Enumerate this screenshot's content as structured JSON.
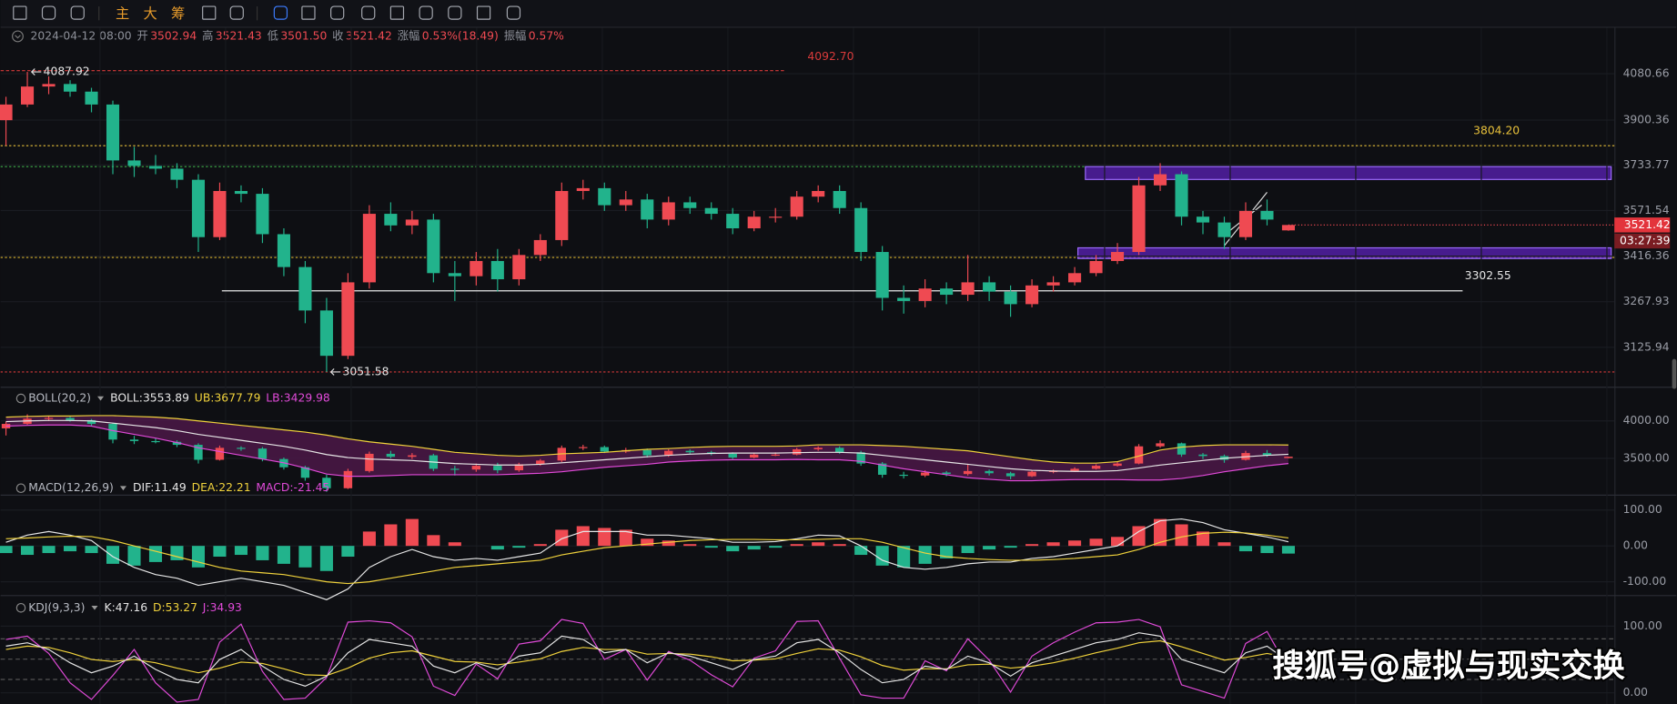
{
  "toolbar": {
    "buttons": [
      "主",
      "大",
      "筹"
    ]
  },
  "info": {
    "time": "2024-04-12 08:00",
    "fields": [
      {
        "label": "开",
        "value": "3502.94"
      },
      {
        "label": "高",
        "value": "3521.43"
      },
      {
        "label": "低",
        "value": "3501.50"
      },
      {
        "label": "收",
        "value": "3521.42"
      },
      {
        "label": "涨幅",
        "value": "0.53%(18.49)"
      },
      {
        "label": "振幅",
        "value": "0.57%"
      }
    ]
  },
  "chart_data": [
    {
      "type": "candlestick",
      "log_scale": true,
      "grid": true,
      "up_color": "#ef4a52",
      "down_color": "#22b38c",
      "ylim": [
        3008,
        4263
      ],
      "yticks": [
        4080.66,
        3900.36,
        3733.77,
        3571.54,
        3416.36,
        3267.93,
        3125.94
      ],
      "candles": [
        [
          3900,
          3990,
          3805,
          3960
        ],
        [
          3960,
          4087.92,
          3950,
          4030
        ],
        [
          4030,
          4070,
          4000,
          4040
        ],
        [
          4040,
          4055,
          3990,
          4010
        ],
        [
          4010,
          4025,
          3930,
          3960
        ],
        [
          3960,
          3975,
          3700,
          3750
        ],
        [
          3750,
          3800,
          3690,
          3730
        ],
        [
          3730,
          3770,
          3700,
          3720
        ],
        [
          3720,
          3740,
          3650,
          3680
        ],
        [
          3680,
          3700,
          3430,
          3480
        ],
        [
          3480,
          3670,
          3470,
          3640
        ],
        [
          3640,
          3660,
          3600,
          3630
        ],
        [
          3630,
          3650,
          3460,
          3490
        ],
        [
          3490,
          3510,
          3350,
          3380
        ],
        [
          3380,
          3400,
          3200,
          3240
        ],
        [
          3240,
          3280,
          3051.58,
          3100
        ],
        [
          3100,
          3360,
          3090,
          3330
        ],
        [
          3330,
          3590,
          3310,
          3560
        ],
        [
          3560,
          3600,
          3500,
          3520
        ],
        [
          3520,
          3570,
          3490,
          3540
        ],
        [
          3540,
          3560,
          3330,
          3360
        ],
        [
          3360,
          3400,
          3270,
          3350
        ],
        [
          3350,
          3430,
          3320,
          3400
        ],
        [
          3400,
          3440,
          3300,
          3340
        ],
        [
          3340,
          3440,
          3320,
          3420
        ],
        [
          3420,
          3490,
          3400,
          3470
        ],
        [
          3470,
          3670,
          3450,
          3640
        ],
        [
          3640,
          3680,
          3610,
          3650
        ],
        [
          3650,
          3670,
          3570,
          3590
        ],
        [
          3590,
          3640,
          3570,
          3610
        ],
        [
          3610,
          3630,
          3510,
          3540
        ],
        [
          3540,
          3620,
          3520,
          3600
        ],
        [
          3600,
          3620,
          3560,
          3580
        ],
        [
          3580,
          3600,
          3540,
          3560
        ],
        [
          3560,
          3580,
          3490,
          3510
        ],
        [
          3510,
          3570,
          3500,
          3550
        ],
        [
          3550,
          3580,
          3530,
          3550
        ],
        [
          3550,
          3640,
          3540,
          3620
        ],
        [
          3620,
          3660,
          3600,
          3640
        ],
        [
          3640,
          3660,
          3560,
          3580
        ],
        [
          3580,
          3600,
          3400,
          3430
        ],
        [
          3430,
          3450,
          3240,
          3280
        ],
        [
          3280,
          3320,
          3230,
          3270
        ],
        [
          3270,
          3340,
          3250,
          3310
        ],
        [
          3310,
          3330,
          3260,
          3290
        ],
        [
          3290,
          3420,
          3270,
          3330
        ],
        [
          3330,
          3350,
          3270,
          3300
        ],
        [
          3300,
          3320,
          3220,
          3260
        ],
        [
          3260,
          3340,
          3250,
          3320
        ],
        [
          3320,
          3350,
          3300,
          3330
        ],
        [
          3330,
          3380,
          3320,
          3360
        ],
        [
          3360,
          3420,
          3350,
          3400
        ],
        [
          3400,
          3460,
          3390,
          3430
        ],
        [
          3430,
          3690,
          3420,
          3660
        ],
        [
          3660,
          3740,
          3640,
          3700
        ],
        [
          3700,
          3710,
          3520,
          3550
        ],
        [
          3550,
          3570,
          3490,
          3530
        ],
        [
          3530,
          3550,
          3440,
          3480
        ],
        [
          3480,
          3600,
          3470,
          3570
        ],
        [
          3570,
          3610,
          3520,
          3540
        ],
        [
          3502.94,
          3521.43,
          3501.5,
          3521.42
        ]
      ],
      "levels": [
        {
          "value": 4092.7,
          "label": "4092.70",
          "color": "#d83a3a"
        },
        {
          "value": 3804.2,
          "label": "3804.20",
          "color": "#e8c13a"
        },
        {
          "value": 3302.55,
          "label": "3302.55",
          "color": "#e6e6e6"
        }
      ],
      "countdown": "03:27:39"
    },
    {
      "type": "boll",
      "title": "BOLL(20,2)",
      "legend": [
        {
          "text": "BOLL:3553.89",
          "color": "#e6e6e6"
        },
        {
          "text": "UB:3677.79",
          "color": "#f0d23c"
        },
        {
          "text": "LB:3429.98",
          "color": "#e04ad8"
        }
      ],
      "ylim": [
        3029,
        4171
      ],
      "yticks": [
        {
          "value": 4000,
          "label": "4000.00"
        },
        {
          "value": 3500,
          "label": "3500.00"
        }
      ],
      "mid": [
        3990,
        4000,
        4005,
        4005,
        4000,
        3970,
        3940,
        3910,
        3870,
        3820,
        3780,
        3740,
        3700,
        3660,
        3610,
        3550,
        3510,
        3490,
        3480,
        3470,
        3450,
        3430,
        3420,
        3410,
        3410,
        3420,
        3440,
        3460,
        3480,
        3500,
        3520,
        3540,
        3555,
        3565,
        3570,
        3570,
        3570,
        3575,
        3580,
        3580,
        3570,
        3540,
        3510,
        3480,
        3450,
        3420,
        3390,
        3360,
        3340,
        3330,
        3325,
        3325,
        3335,
        3370,
        3410,
        3440,
        3470,
        3500,
        3520,
        3540,
        3553.89
      ],
      "upper": [
        4050,
        4060,
        4065,
        4065,
        4070,
        4070,
        4060,
        4050,
        4030,
        4000,
        3970,
        3940,
        3910,
        3880,
        3850,
        3810,
        3760,
        3720,
        3690,
        3660,
        3620,
        3580,
        3560,
        3540,
        3530,
        3540,
        3560,
        3570,
        3580,
        3600,
        3620,
        3630,
        3645,
        3655,
        3660,
        3660,
        3660,
        3665,
        3680,
        3680,
        3680,
        3670,
        3660,
        3640,
        3620,
        3600,
        3560,
        3520,
        3480,
        3450,
        3435,
        3435,
        3455,
        3530,
        3610,
        3650,
        3670,
        3680,
        3680,
        3680,
        3677.79
      ],
      "lower": [
        3930,
        3940,
        3945,
        3945,
        3930,
        3870,
        3820,
        3770,
        3710,
        3640,
        3590,
        3540,
        3490,
        3440,
        3370,
        3290,
        3260,
        3260,
        3270,
        3280,
        3280,
        3280,
        3280,
        3280,
        3290,
        3300,
        3320,
        3350,
        3380,
        3400,
        3420,
        3450,
        3465,
        3475,
        3480,
        3480,
        3480,
        3485,
        3480,
        3480,
        3460,
        3410,
        3360,
        3320,
        3280,
        3240,
        3220,
        3200,
        3200,
        3210,
        3215,
        3215,
        3215,
        3210,
        3210,
        3230,
        3270,
        3320,
        3360,
        3400,
        3429.98
      ]
    },
    {
      "type": "macd",
      "title": "MACD(12,26,9)",
      "legend": [
        {
          "text": "DIF:11.49",
          "color": "#e6e6e6"
        },
        {
          "text": "DEA:22.21",
          "color": "#f0d23c"
        },
        {
          "text": "MACD:-21.45",
          "color": "#e04ad8"
        }
      ],
      "ylim": [
        -137,
        134
      ],
      "yticks": [
        {
          "value": 100,
          "label": "100.00"
        },
        {
          "value": 0,
          "label": "0.00"
        },
        {
          "value": -100,
          "label": "-100.00"
        }
      ],
      "hist": [
        -20,
        -25,
        -20,
        -15,
        -20,
        -50,
        -55,
        -45,
        -40,
        -60,
        -30,
        -25,
        -40,
        -50,
        -60,
        -70,
        -30,
        40,
        60,
        75,
        30,
        10,
        0,
        -10,
        -5,
        5,
        45,
        55,
        50,
        45,
        20,
        15,
        5,
        -5,
        -15,
        -10,
        -5,
        5,
        10,
        5,
        -25,
        -55,
        -60,
        -50,
        -35,
        -20,
        -10,
        -5,
        5,
        10,
        15,
        20,
        25,
        55,
        75,
        60,
        40,
        10,
        -15,
        -20,
        -21.45
      ],
      "dif": [
        10,
        30,
        40,
        30,
        15,
        -30,
        -60,
        -80,
        -90,
        -110,
        -100,
        -90,
        -100,
        -110,
        -130,
        -150,
        -120,
        -60,
        -30,
        -10,
        -30,
        -40,
        -35,
        -40,
        -30,
        -20,
        20,
        40,
        40,
        40,
        30,
        30,
        25,
        20,
        10,
        10,
        12,
        20,
        30,
        28,
        0,
        -40,
        -60,
        -65,
        -60,
        -50,
        -45,
        -45,
        -35,
        -30,
        -20,
        -10,
        0,
        40,
        70,
        75,
        65,
        45,
        35,
        25,
        11.49
      ],
      "dea": [
        20,
        22,
        25,
        27,
        26,
        15,
        0,
        -15,
        -30,
        -45,
        -60,
        -70,
        -75,
        -80,
        -90,
        -100,
        -105,
        -100,
        -90,
        -80,
        -70,
        -60,
        -55,
        -50,
        -45,
        -40,
        -25,
        -15,
        -5,
        0,
        5,
        10,
        15,
        17,
        18,
        18,
        17,
        17,
        18,
        20,
        20,
        10,
        -5,
        -20,
        -30,
        -35,
        -38,
        -40,
        -40,
        -38,
        -35,
        -30,
        -25,
        -10,
        10,
        25,
        35,
        38,
        36,
        30,
        22.21
      ]
    },
    {
      "type": "kdj",
      "title": "KDJ(9,3,3)",
      "legend": [
        {
          "text": "K:47.16",
          "color": "#e6e6e6"
        },
        {
          "text": "D:53.27",
          "color": "#f0d23c"
        },
        {
          "text": "J:34.93",
          "color": "#e04ad8"
        }
      ],
      "ylim": [
        -12,
        113
      ],
      "yticks": [
        {
          "value": 100,
          "label": "100.00"
        },
        {
          "value": 0,
          "label": "0.00"
        }
      ],
      "k": [
        70,
        75,
        65,
        45,
        30,
        40,
        55,
        35,
        20,
        15,
        50,
        65,
        40,
        20,
        10,
        25,
        60,
        80,
        75,
        70,
        40,
        30,
        45,
        35,
        55,
        60,
        85,
        80,
        60,
        65,
        45,
        60,
        55,
        45,
        35,
        50,
        55,
        75,
        80,
        60,
        35,
        15,
        20,
        40,
        35,
        55,
        45,
        25,
        45,
        55,
        65,
        75,
        80,
        90,
        85,
        50,
        40,
        30,
        60,
        70,
        47.16
      ],
      "d": [
        65,
        70,
        68,
        60,
        50,
        47,
        50,
        45,
        37,
        30,
        37,
        46,
        44,
        36,
        27,
        26,
        37,
        52,
        60,
        63,
        55,
        47,
        46,
        42,
        46,
        51,
        62,
        68,
        65,
        65,
        58,
        59,
        58,
        54,
        48,
        49,
        51,
        59,
        66,
        64,
        54,
        41,
        34,
        36,
        36,
        42,
        43,
        37,
        40,
        45,
        52,
        60,
        67,
        75,
        78,
        69,
        59,
        49,
        53,
        59,
        53.27
      ],
      "j": [
        80,
        85,
        59,
        15,
        -10,
        26,
        65,
        15,
        -14,
        -10,
        76,
        103,
        32,
        -10,
        -8,
        23,
        106,
        108,
        105,
        84,
        10,
        -4,
        43,
        21,
        73,
        78,
        110,
        104,
        50,
        65,
        19,
        62,
        49,
        27,
        9,
        52,
        63,
        107,
        108,
        52,
        -3,
        -8,
        -8,
        48,
        33,
        81,
        49,
        1,
        55,
        75,
        91,
        105,
        106,
        110,
        99,
        12,
        2,
        -8,
        74,
        92,
        34.93
      ]
    }
  ],
  "watermark": "搜狐号@虚拟与现实交换"
}
